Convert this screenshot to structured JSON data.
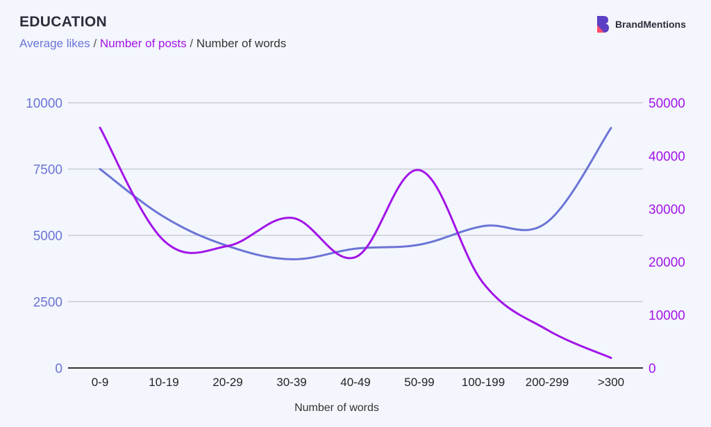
{
  "header": {
    "title": "EDUCATION",
    "subtitle_parts": [
      "Average likes",
      " / ",
      "Number of posts",
      " / ",
      "Number of words"
    ]
  },
  "logo": {
    "text": "BrandMentions",
    "icon": "brandmentions-logo-icon"
  },
  "colors": {
    "likes": "#6b74d6",
    "posts": "#a214e8",
    "axis": "#333333",
    "grid": "#c9ccd6",
    "bg": "#f3f6fc"
  },
  "chart_data": {
    "type": "line",
    "categories": [
      "0-9",
      "10-19",
      "20-29",
      "30-39",
      "40-49",
      "50-99",
      "100-199",
      "200-299",
      ">300"
    ],
    "xlabel": "Number of words",
    "y_left": {
      "ylim": [
        0,
        10000
      ],
      "ticks": [
        "0",
        "2500",
        "5000",
        "7500",
        "10000"
      ]
    },
    "y_right": {
      "ylim": [
        0,
        50000
      ],
      "ticks": [
        "0",
        "10000",
        "20000",
        "30000",
        "40000",
        "50000"
      ]
    },
    "series": [
      {
        "name": "Average likes",
        "axis": "left",
        "values": [
          7500,
          5700,
          4600,
          4100,
          4500,
          4650,
          5350,
          5500,
          9050
        ]
      },
      {
        "name": "Number of posts",
        "axis": "right",
        "values": [
          45300,
          24000,
          23000,
          28300,
          20900,
          37300,
          16000,
          7200,
          1900
        ]
      }
    ],
    "grid": true,
    "smooth": true
  }
}
